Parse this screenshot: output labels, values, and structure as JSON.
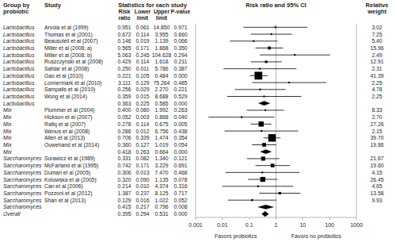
{
  "chart_data": {
    "type": "forest",
    "title": "Risk ratio and 95% CI",
    "annotations": [
      "Group by",
      "probiotic",
      "Study",
      "Statistics for each study",
      "Risk",
      "ratio",
      "Lower",
      "limit",
      "Upper",
      "limit",
      "P-value",
      "Relative",
      "weight"
    ],
    "xlabel_left": "Favors probiotics",
    "xlabel_right": "Favors no probiotics",
    "groups": [
      "Lactobacillus",
      "Lactobacillus",
      "Lactobacillus",
      "Lactobacillus",
      "Lactobacillus",
      "Lactobacillus",
      "Lactobacillus",
      "Lactobacillus",
      "Lactobacillus",
      "Lactobacillus",
      "Lactobacillus",
      "Lactobacillus",
      "Mix",
      "Mix",
      "Mix",
      "Mix",
      "Mix",
      "Mix",
      "Mix",
      "Saccharomyces",
      "Saccharomyces",
      "Saccharomyces",
      "Saccharomyces",
      "Saccharomyces",
      "Saccharomyces",
      "Saccharomyces",
      "Saccharomyces",
      "Overall"
    ],
    "categories": [
      "Arvola et al (1999)",
      "Thomas et al (2001)",
      "Beausoleil et al (2007)",
      "Miller et al (2008; a)",
      "Miller et al (2008; b)",
      "Ruszczynski et al (2008)",
      "Safdar et al (2008)",
      "Gao et al (2010)",
      "Lonnermark et al (2010)",
      "Sampalis et al (2010)",
      "Wong et al (2014)",
      null,
      "Plummer et al (2004)",
      "Hickson et al (2007)",
      "Rafiq et al (2007)",
      "Wenus et al (2008)",
      "Allen et al (2013)",
      "Ouwehand et al (2014)",
      null,
      "Surawicz et al (1989)",
      "McFarland et al (1995)",
      "Duman et al (2005)",
      "Kotowska et al (2005)",
      "Can et al (2006)",
      "Pozzoni et al (2012)",
      "Shan et al (2013)",
      null,
      null
    ],
    "markers": [
      "square",
      "square",
      "square",
      "square",
      "square",
      "square",
      "square",
      "square",
      "square",
      "square",
      "square",
      "diamond",
      "square",
      "square",
      "square",
      "square",
      "square",
      "square",
      "diamond",
      "square",
      "square",
      "square",
      "square",
      "square",
      "square",
      "square",
      "diamond",
      "large-diamond"
    ],
    "values": [
      0.951,
      0.672,
      0.146,
      0.565,
      5.063,
      0.429,
      0.25,
      0.221,
      3.111,
      0.256,
      0.359,
      0.363,
      0.4,
      0.052,
      0.278,
      0.286,
      0.706,
      0.36,
      0.418,
      0.331,
      0.742,
      0.306,
      0.32,
      0.214,
      1.387,
      0.129,
      0.415,
      0.395
    ],
    "value_labels": [
      "0.951",
      "0.672",
      "0.146",
      "0.565",
      "5.063",
      "0.429",
      "0.250",
      "0.221",
      "3.111",
      "0.256",
      "0.359",
      "0.363",
      "0.400",
      "0.052",
      "0.278",
      "0.286",
      "0.706",
      "0.360",
      "0.418",
      "0.331",
      "0.742",
      "0.306",
      "0.320",
      "0.214",
      "1.387",
      "0.129",
      "0.415",
      "0.395"
    ],
    "lower": [
      0.061,
      0.114,
      0.019,
      0.171,
      0.245,
      0.114,
      0.011,
      0.105,
      0.129,
      0.029,
      0.015,
      0.225,
      0.08,
      0.003,
      0.114,
      0.012,
      0.339,
      0.127,
      0.263,
      0.082,
      0.171,
      0.013,
      0.09,
      0.01,
      0.237,
      0.016,
      0.217,
      0.294
    ],
    "lower_labels": [
      "0.061",
      "0.114",
      "0.019",
      "0.171",
      "0.245",
      "0.114",
      "0.011",
      "0.105",
      "0.129",
      "0.029",
      "0.015",
      "0.225",
      "0.080",
      "0.003",
      "0.114",
      "0.012",
      "0.339",
      "0.127",
      "0.263",
      "0.082",
      "0.171",
      "0.013",
      "0.090",
      "0.010",
      "0.237",
      "0.016",
      "0.217",
      "0.294"
    ],
    "upper": [
      14.85,
      3.955,
      1.139,
      1.868,
      104.628,
      1.618,
      5.786,
      0.484,
      75.264,
      2.27,
      8.688,
      0.585,
      1.992,
      0.868,
      0.675,
      6.756,
      1.474,
      1.019,
      0.664,
      1.34,
      3.229,
      7.47,
      1.135,
      4.374,
      8.125,
      1.022,
      0.796,
      0.531
    ],
    "upper_labels": [
      "14.850",
      "3.955",
      "1.139",
      "1.868",
      "104.628",
      "1.618",
      "5.786",
      "0.484",
      "75.264",
      "2.270",
      "8.688",
      "0.585",
      "1.992",
      "0.868",
      "0.675",
      "6.756",
      "1.474",
      "1.019",
      "0.664",
      "1.340",
      "3.229",
      "7.470",
      "1.135",
      "4.374",
      "8.125",
      "1.022",
      "0.796",
      "0.531"
    ],
    "pval": [
      0.971,
      0.66,
      0.066,
      0.35,
      0.294,
      0.211,
      0.387,
      0,
      0.485,
      0.221,
      0.529,
      0,
      0.263,
      0.04,
      0.005,
      0.438,
      0.354,
      0.054,
      0,
      0.121,
      0.691,
      0.468,
      0.078,
      0.316,
      0.717,
      0.052,
      0.008,
      0
    ],
    "pval_labels": [
      "0.971",
      "0.660",
      "0.066",
      "0.350",
      "0.294",
      "0.211",
      "0.387",
      "0.000",
      "0.485",
      "0.221",
      "0.529",
      "0.000",
      "0.263",
      "0.040",
      "0.005",
      "0.438",
      "0.354",
      "0.054",
      "0.000",
      "0.121",
      "0.691",
      "0.468",
      "0.078",
      "0.316",
      "0.717",
      "0.052",
      "0.008",
      "0.000"
    ],
    "weight": [
      3.02,
      7.25,
      5.4,
      15.96,
      2.49,
      12.91,
      2.31,
      41.39,
      2.25,
      4.78,
      2.25,
      null,
      8.33,
      2.7,
      27.26,
      2.15,
      39.7,
      19.86,
      null,
      21.67,
      19.6,
      4.15,
      26.45,
      4.65,
      13.58,
      9.93,
      null,
      null
    ],
    "weight_labels": [
      "3.02",
      "7.25",
      "5.40",
      "15.96",
      "2.49",
      "12.91",
      "2.31",
      "41.39",
      "2.25",
      "4.78",
      "2.25",
      null,
      "8.33",
      "2.70",
      "27.26",
      "2.15",
      "39.70",
      "19.86",
      null,
      "21.67",
      "19.60",
      "4.15",
      "26.45",
      "4.65",
      "13.58",
      "9.93",
      null,
      null
    ],
    "reference": 1,
    "color": "#000000",
    "log": "x",
    "xlim": [
      0.001,
      1000
    ],
    "xticks": [
      0.001,
      0.01,
      0.1,
      1,
      10,
      100,
      1000
    ]
  }
}
